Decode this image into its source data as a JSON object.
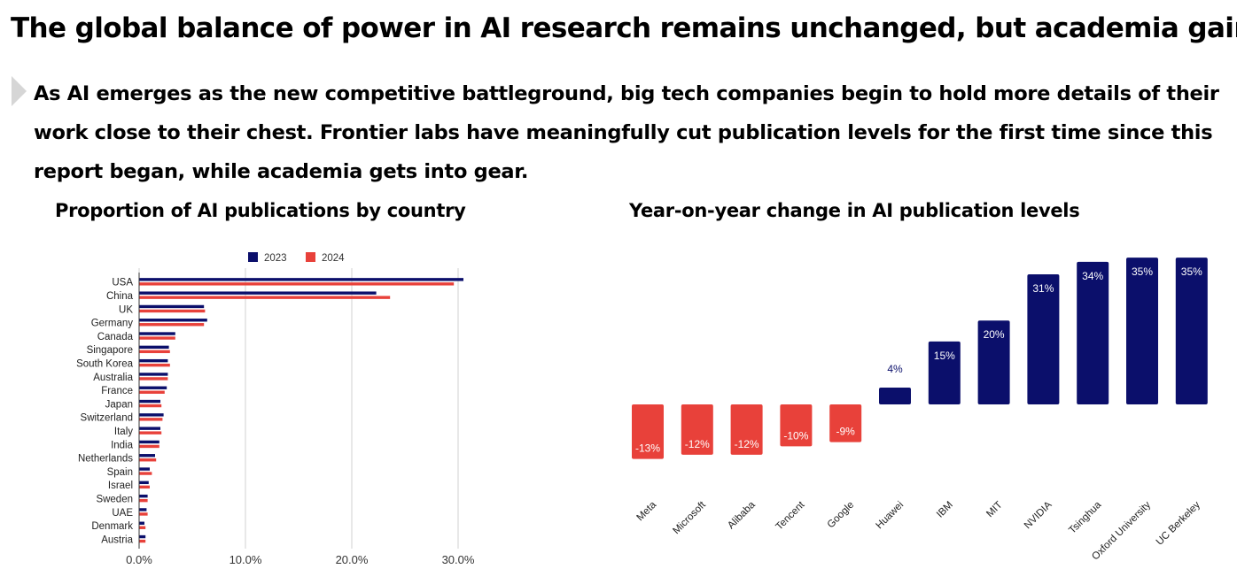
{
  "header": {
    "title": "The global balance of power in AI research remains unchanged, but academia gains",
    "subtitle": "As AI emerges as the new competitive battleground, big tech companies begin to hold more details of their work close to their chest. Frontier labs have meaningfully cut publication levels for the first time since this report began, while academia gets into gear."
  },
  "colors": {
    "navy": "#0b0f6b",
    "red": "#e8413a",
    "grid": "#d0d0d0"
  },
  "chart_data": [
    {
      "type": "bar",
      "orientation": "horizontal",
      "title": "Proportion of AI publications by country",
      "categories": [
        "USA",
        "China",
        "UK",
        "Germany",
        "Canada",
        "Singapore",
        "South Korea",
        "Australia",
        "France",
        "Japan",
        "Switzerland",
        "Italy",
        "India",
        "Netherlands",
        "Spain",
        "Israel",
        "Sweden",
        "UAE",
        "Denmark",
        "Austria"
      ],
      "series": [
        {
          "name": "2023",
          "color": "#0b0f6b",
          "values": [
            30.5,
            22.3,
            6.1,
            6.4,
            3.4,
            2.8,
            2.7,
            2.7,
            2.6,
            2.0,
            2.3,
            2.0,
            1.9,
            1.5,
            1.0,
            0.9,
            0.8,
            0.7,
            0.5,
            0.6
          ]
        },
        {
          "name": "2024",
          "color": "#e8413a",
          "values": [
            29.6,
            23.6,
            6.2,
            6.1,
            3.4,
            2.9,
            2.9,
            2.7,
            2.4,
            2.1,
            2.2,
            2.1,
            1.9,
            1.6,
            1.2,
            1.0,
            0.8,
            0.8,
            0.6,
            0.6
          ]
        }
      ],
      "xlim": [
        0,
        30
      ],
      "xticks": [
        "0.0%",
        "10.0%",
        "20.0%",
        "30.0%"
      ],
      "grid": true,
      "legend": "top"
    },
    {
      "type": "bar",
      "title": "Year-on-year change in AI publication levels",
      "categories": [
        "Meta",
        "Microsoft",
        "Alibaba",
        "Tencent",
        "Google",
        "Huawei",
        "IBM",
        "MIT",
        "NVIDIA",
        "Tsinghua",
        "Oxford University",
        "UC Berkeley"
      ],
      "values": [
        -13,
        -12,
        -12,
        -10,
        -9,
        4,
        15,
        20,
        31,
        34,
        35,
        35
      ],
      "labels": [
        "-13%",
        "-12%",
        "-12%",
        "-10%",
        "-9%",
        "4%",
        "15%",
        "20%",
        "31%",
        "34%",
        "35%",
        "35%"
      ],
      "unit": "%",
      "grid": false
    }
  ]
}
